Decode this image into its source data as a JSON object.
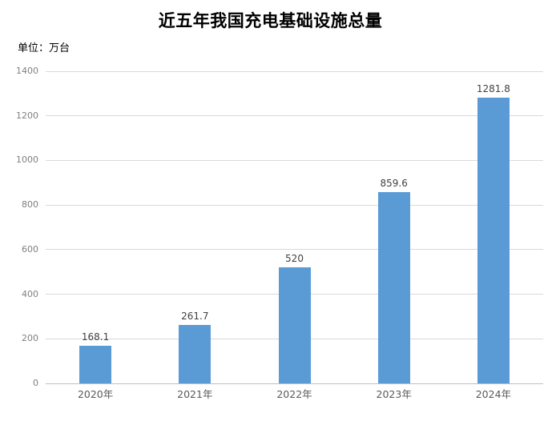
{
  "chart_data": {
    "type": "bar",
    "title": "近五年我国充电基础设施总量",
    "unit_label": "单位：万台",
    "categories": [
      "2020年",
      "2021年",
      "2022年",
      "2023年",
      "2024年"
    ],
    "values": [
      168.1,
      261.7,
      520,
      859.6,
      1281.8
    ],
    "value_labels": [
      "168.1",
      "261.7",
      "520",
      "859.6",
      "1281.8"
    ],
    "xlabel": "",
    "ylabel": "",
    "ylim": [
      0,
      1400
    ],
    "ytick_step": 200,
    "ytick_labels": [
      "0",
      "200",
      "400",
      "600",
      "800",
      "1000",
      "1200",
      "1400"
    ],
    "grid": true,
    "legend": "none",
    "colors": {
      "bar": "#5b9bd5",
      "gridline": "#d9d9d9",
      "axis_line": "#bfbfbf",
      "title_text": "#000000",
      "unit_text": "#000000",
      "y_tick_text": "#7f7f7f",
      "x_tick_text": "#595959",
      "value_label_text": "#404040",
      "background": "#ffffff"
    }
  }
}
